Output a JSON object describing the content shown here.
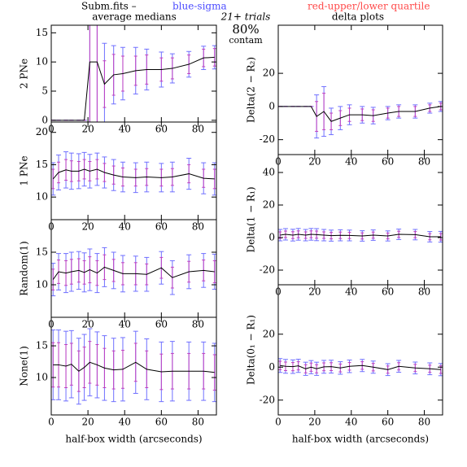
{
  "header": {
    "file": "Subm.fits  –",
    "blue": "blue-sigma",
    "red": "red-upper/lower quartile",
    "left_title": "average medians",
    "right_title": "delta plots",
    "trials": "21+ trials",
    "percent": "80%",
    "contam": "contam"
  },
  "chart_data": [
    {
      "type": "errorline",
      "ylabel": "2 PNe",
      "xlim": [
        0,
        90
      ],
      "xticks": [
        0,
        20,
        40,
        60,
        80
      ],
      "ylim": [
        -0.3,
        16.3
      ],
      "yticks": [
        0,
        5,
        10,
        15
      ],
      "x": [
        1,
        4,
        8,
        11,
        15,
        18,
        21,
        25,
        29,
        34,
        39,
        46,
        52,
        60,
        66,
        75,
        83,
        89
      ],
      "values": [
        0,
        0,
        0,
        0,
        0,
        0,
        10,
        10,
        6.2,
        7.8,
        8,
        8.5,
        8.7,
        8.7,
        8.9,
        9.6,
        10.7,
        10.8
      ],
      "sigma": [
        0,
        0,
        0,
        0,
        0,
        0,
        14,
        14,
        7,
        5,
        4.5,
        4,
        3.5,
        3,
        2.5,
        2.2,
        2,
        2
      ],
      "quartile": [
        0,
        0,
        0,
        0,
        0,
        0,
        11,
        11,
        4,
        3.5,
        3,
        2.5,
        2.5,
        2,
        1.8,
        1.6,
        1.5,
        1.5
      ]
    },
    {
      "type": "errorline",
      "ylabel": "1 PNe",
      "xlim": [
        0,
        90
      ],
      "xticks": [
        0,
        20,
        40,
        60,
        80
      ],
      "ylim": [
        6.5,
        21.6
      ],
      "yticks": [
        10,
        15,
        20
      ],
      "x": [
        1,
        4,
        8,
        11,
        15,
        18,
        21,
        25,
        29,
        34,
        39,
        46,
        52,
        60,
        66,
        75,
        83,
        89
      ],
      "values": [
        12.8,
        13.8,
        14.2,
        14,
        14,
        14.3,
        14,
        14.3,
        13.8,
        13.4,
        13.1,
        13,
        13.1,
        13,
        13.1,
        13.6,
        12.9,
        12.8
      ],
      "sigma": [
        2.5,
        2.7,
        2.8,
        2.8,
        2.7,
        2.6,
        2.6,
        2.5,
        2.4,
        2.4,
        2.3,
        2.3,
        2.3,
        2.2,
        2.3,
        2.4,
        2.4,
        2.5
      ],
      "quartile": [
        1.5,
        1.6,
        1.6,
        1.6,
        1.5,
        1.5,
        1.5,
        1.5,
        1.4,
        1.4,
        1.4,
        1.3,
        1.3,
        1.3,
        1.3,
        1.4,
        1.4,
        1.5
      ]
    },
    {
      "type": "errorline",
      "ylabel": "Random(1)",
      "xlim": [
        0,
        90
      ],
      "xticks": [
        0,
        20,
        40,
        60,
        80
      ],
      "ylim": [
        5,
        20
      ],
      "yticks": [
        10,
        15
      ],
      "x": [
        1,
        4,
        8,
        11,
        15,
        18,
        21,
        25,
        29,
        34,
        39,
        46,
        52,
        60,
        66,
        75,
        83,
        89
      ],
      "values": [
        10.8,
        12,
        11.8,
        12,
        12.2,
        11.9,
        12.3,
        11.8,
        12.7,
        12.2,
        11.7,
        11.7,
        11.6,
        12.6,
        11.1,
        12,
        12.2,
        12
      ],
      "sigma": [
        2.5,
        2.8,
        3,
        3,
        2.9,
        3,
        3.2,
        3,
        3,
        2.8,
        2.8,
        2.7,
        2.6,
        2.5,
        2.6,
        2.6,
        2.6,
        2.7
      ],
      "quartile": [
        1.6,
        1.8,
        1.9,
        1.9,
        1.8,
        1.8,
        2,
        1.9,
        1.9,
        1.7,
        1.7,
        1.7,
        1.6,
        1.6,
        1.6,
        1.6,
        1.6,
        1.7
      ]
    },
    {
      "type": "errorline",
      "ylabel": "None(1)",
      "xlabel": "half-box width (arcseconds)",
      "xlim": [
        0,
        90
      ],
      "xticks": [
        0,
        20,
        40,
        60,
        80
      ],
      "ylim": [
        4.1,
        19.5
      ],
      "yticks": [
        10,
        15
      ],
      "x": [
        1,
        4,
        8,
        11,
        15,
        18,
        21,
        25,
        29,
        34,
        39,
        46,
        52,
        60,
        66,
        75,
        83,
        89
      ],
      "values": [
        12,
        12,
        11.8,
        12.1,
        11,
        11.6,
        12.4,
        12,
        11.5,
        11.2,
        11.3,
        12.4,
        11.3,
        10.9,
        11,
        11,
        11,
        10.8
      ],
      "sigma": [
        5.5,
        5.5,
        5.5,
        5.3,
        5.2,
        5.2,
        5.3,
        5.2,
        5.1,
        5,
        5,
        4.9,
        4.8,
        4.7,
        4.7,
        4.6,
        4.6,
        4.6
      ],
      "quartile": [
        3.5,
        3.5,
        3.4,
        3.3,
        3.2,
        3.2,
        3.3,
        3.2,
        3.1,
        3,
        3,
        3,
        2.9,
        2.8,
        2.8,
        2.8,
        2.8,
        2.8
      ]
    },
    {
      "type": "errorline",
      "ylabel": "Delta(2 − R₂)",
      "xlim": [
        0,
        90
      ],
      "xticks": [
        0,
        20,
        40,
        60,
        80
      ],
      "ylim": [
        -29,
        49
      ],
      "yticks": [
        -20,
        0,
        20
      ],
      "x": [
        1,
        4,
        8,
        11,
        15,
        18,
        21,
        25,
        29,
        34,
        39,
        46,
        52,
        60,
        66,
        75,
        83,
        89
      ],
      "values": [
        0,
        0,
        0,
        0,
        0,
        0,
        -6,
        -3,
        -9,
        -7,
        -5,
        -5,
        -5.5,
        -4,
        -3,
        -3,
        -1,
        0
      ],
      "sigma": [
        0,
        0,
        0,
        0,
        0,
        0,
        13,
        15,
        8,
        7,
        6,
        5,
        5,
        4,
        4,
        4,
        3,
        3
      ],
      "quartile": [
        0,
        0,
        0,
        0,
        0,
        0,
        9,
        11,
        5,
        4.5,
        4,
        3.5,
        3.5,
        3,
        3,
        3,
        2,
        2
      ]
    },
    {
      "type": "errorline",
      "ylabel": "Delta(1 − R₁)",
      "xlim": [
        0,
        90
      ],
      "xticks": [
        0,
        20,
        40,
        60,
        80
      ],
      "ylim": [
        -29,
        51
      ],
      "yticks": [
        -20,
        0,
        20,
        40
      ],
      "x": [
        1,
        4,
        8,
        11,
        15,
        18,
        21,
        25,
        29,
        34,
        39,
        46,
        52,
        60,
        66,
        75,
        83,
        89
      ],
      "values": [
        1.5,
        2,
        1.5,
        2,
        1.5,
        2,
        1.8,
        1.5,
        1.2,
        1.4,
        1.3,
        1,
        1.5,
        1,
        2,
        1.8,
        0.5,
        0.5
      ],
      "sigma": [
        3.5,
        3.5,
        3.6,
        3.6,
        3.5,
        3.6,
        3.7,
        3.5,
        3.4,
        3.4,
        3.3,
        3.2,
        3.2,
        3.1,
        3.2,
        3.2,
        3.2,
        3.3
      ],
      "quartile": [
        2,
        2,
        2.1,
        2.1,
        2,
        2.1,
        2.2,
        2,
        2,
        2,
        1.9,
        1.9,
        1.9,
        1.8,
        1.9,
        1.9,
        1.9,
        2
      ]
    },
    {
      "type": "errorline",
      "ylabel": "Delta(0₁ − R₁)",
      "xlabel": "half-box width (arcseconds)",
      "xlim": [
        0,
        90
      ],
      "xticks": [
        0,
        20,
        40,
        60,
        80
      ],
      "ylim": [
        -29,
        50
      ],
      "yticks": [
        -20,
        0,
        20
      ],
      "x": [
        1,
        4,
        8,
        11,
        15,
        18,
        21,
        25,
        29,
        34,
        39,
        46,
        52,
        60,
        66,
        75,
        83,
        89
      ],
      "values": [
        1,
        0.5,
        0.3,
        0.8,
        -1,
        0,
        -1,
        0.2,
        0.3,
        -0.5,
        0.5,
        1,
        0,
        -1.5,
        0.5,
        -0.5,
        -1,
        -1.5
      ],
      "sigma": [
        4.2,
        4.2,
        4.1,
        4,
        4,
        4,
        4,
        3.9,
        3.9,
        3.8,
        3.8,
        3.7,
        3.7,
        3.6,
        3.6,
        3.6,
        3.6,
        3.7
      ],
      "quartile": [
        2.6,
        2.6,
        2.5,
        2.5,
        2.5,
        2.5,
        2.5,
        2.4,
        2.4,
        2.4,
        2.3,
        2.3,
        2.3,
        2.2,
        2.2,
        2.2,
        2.2,
        2.3
      ]
    }
  ]
}
